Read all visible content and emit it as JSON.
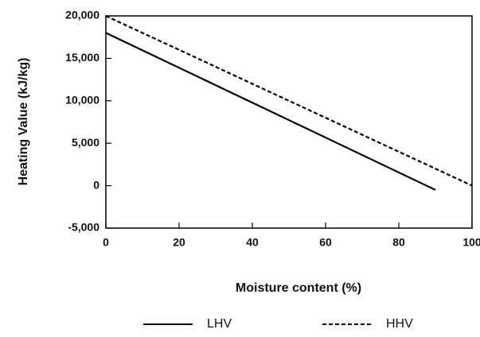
{
  "chart_data": {
    "type": "line",
    "x_label": "Moisture content (%)",
    "y_label": "Heating Value (kJ/kg)",
    "x": [
      0,
      90,
      100
    ],
    "series": [
      {
        "name": "LHV",
        "color": "#000000",
        "line_style": "solid",
        "values": [
          18000,
          -500,
          null
        ]
      },
      {
        "name": "HHV",
        "color": "#000000",
        "line_style": "dashed",
        "values": [
          20000,
          2000,
          0
        ]
      }
    ],
    "xlim": [
      0,
      100
    ],
    "xticks": [
      0,
      20,
      40,
      60,
      80,
      100
    ],
    "ylim": [
      -5000,
      20000
    ],
    "yticks": [
      {
        "value": -5000,
        "label": "-5,000"
      },
      0,
      {
        "value": 5000,
        "label": "5,000"
      },
      {
        "value": 10000,
        "label": "10,000"
      },
      {
        "value": 15000,
        "label": "15,000"
      },
      {
        "value": 20000,
        "label": "20,000"
      }
    ],
    "legend": "bottom"
  }
}
